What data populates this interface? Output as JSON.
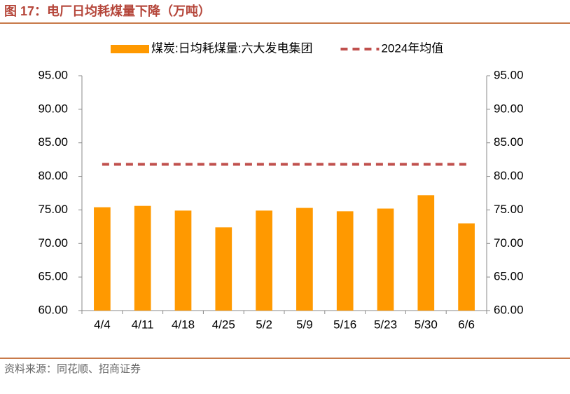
{
  "title": "图 17：电厂日均耗煤量下降（万吨）",
  "source": "资料来源：同花顺、招商证券",
  "chart_data": {
    "type": "bar",
    "categories": [
      "4/4",
      "4/11",
      "4/18",
      "4/25",
      "5/2",
      "5/9",
      "5/16",
      "5/23",
      "5/30",
      "6/6"
    ],
    "series": [
      {
        "name": "煤炭:日均耗煤量:六大发电集团",
        "type": "bar",
        "color": "#ff9900",
        "values": [
          75.4,
          75.6,
          74.9,
          72.4,
          74.9,
          75.3,
          74.8,
          75.2,
          77.2,
          73.0
        ]
      },
      {
        "name": "2024年均值",
        "type": "line",
        "color": "#c0504d",
        "values": [
          81.8,
          81.8,
          81.8,
          81.8,
          81.8,
          81.8,
          81.8,
          81.8,
          81.8,
          81.8
        ]
      }
    ],
    "ylim": [
      60,
      95
    ],
    "yticks": [
      {
        "value": 60,
        "label": "60.00"
      },
      {
        "value": 65,
        "label": "65.00"
      },
      {
        "value": 70,
        "label": "70.00"
      },
      {
        "value": 75,
        "label": "75.00"
      },
      {
        "value": 80,
        "label": "80.00"
      },
      {
        "value": 85,
        "label": "85.00"
      },
      {
        "value": 90,
        "label": "90.00"
      },
      {
        "value": 95,
        "label": "95.00"
      }
    ],
    "y2lim": [
      60,
      95
    ],
    "y2ticks": [
      {
        "value": 60,
        "label": "60.00"
      },
      {
        "value": 65,
        "label": "65.00"
      },
      {
        "value": 70,
        "label": "70.00"
      },
      {
        "value": 75,
        "label": "75.00"
      },
      {
        "value": 80,
        "label": "80.00"
      },
      {
        "value": 85,
        "label": "85.00"
      },
      {
        "value": 90,
        "label": "90.00"
      },
      {
        "value": 95,
        "label": "95.00"
      }
    ],
    "legend": "top"
  }
}
